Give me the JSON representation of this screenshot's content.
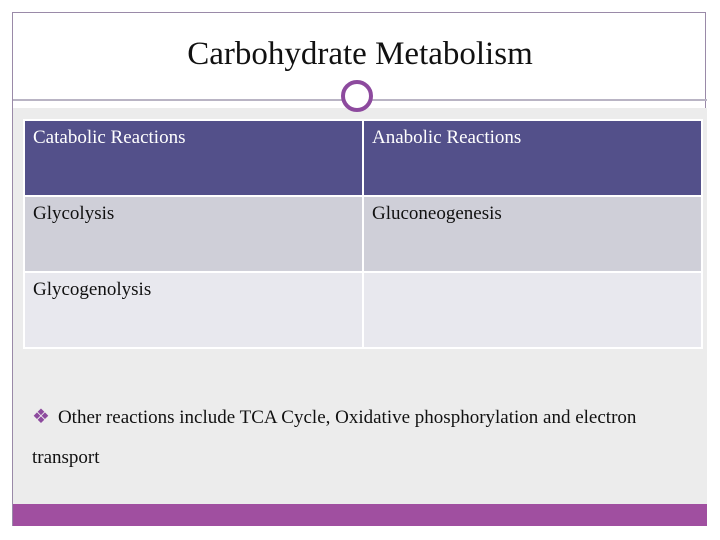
{
  "title": "Carbohydrate Metabolism",
  "table": {
    "header": [
      "Catabolic Reactions",
      "Anabolic Reactions"
    ],
    "rows": [
      [
        "Glycolysis",
        "Gluconeogenesis"
      ],
      [
        "Glycogenolysis"
      ]
    ]
  },
  "bullet": "Other reactions include TCA Cycle, Oxidative phosphorylation and electron transport"
}
